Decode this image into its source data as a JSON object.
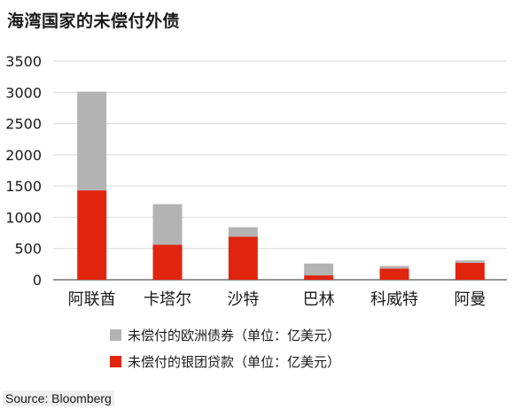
{
  "title": "海湾国家的未偿付外债",
  "source": "Source: Bloomberg",
  "chart_data": {
    "type": "bar",
    "stacked": true,
    "categories": [
      "阿联酋",
      "卡塔尔",
      "沙特",
      "巴林",
      "科威特",
      "阿曼"
    ],
    "series": [
      {
        "name": "未偿付的银团贷款（单位：亿美元）",
        "color": "#e0240e",
        "values": [
          1430,
          560,
          690,
          70,
          180,
          270
        ]
      },
      {
        "name": "未偿付的欧洲债券（单位：亿美元）",
        "color": "#b3b3b3",
        "values": [
          1580,
          650,
          150,
          190,
          40,
          40
        ]
      }
    ],
    "ylim": [
      0,
      3500
    ],
    "yticks": [
      0,
      500,
      1000,
      1500,
      2000,
      2500,
      3000,
      3500
    ],
    "grid": true,
    "legend_position": "bottom"
  }
}
